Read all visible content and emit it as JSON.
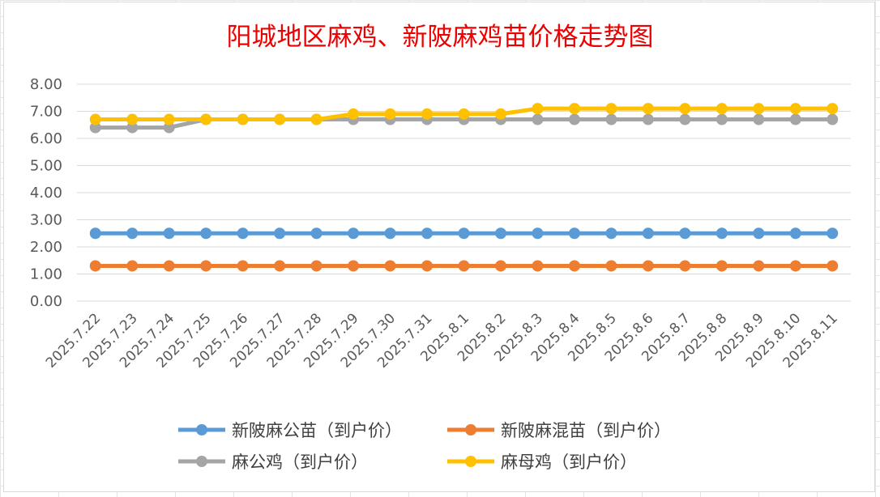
{
  "chart_data": {
    "type": "line",
    "title": "阳城地区麻鸡、新陂麻鸡苗价格走势图",
    "xlabel": "",
    "ylabel": "",
    "ylim": [
      0,
      8
    ],
    "yticks": [
      "0.00",
      "1.00",
      "2.00",
      "3.00",
      "4.00",
      "5.00",
      "6.00",
      "7.00",
      "8.00"
    ],
    "grid": "horizontal",
    "legend_position": "bottom",
    "categories": [
      "2025.7.22",
      "2025.7.23",
      "2025.7.24",
      "2025.7.25",
      "2025.7.26",
      "2025.7.27",
      "2025.7.28",
      "2025.7.29",
      "2025.7.30",
      "2025.7.31",
      "2025.8.1",
      "2025.8.2",
      "2025.8.3",
      "2025.8.4",
      "2025.8.5",
      "2025.8.6",
      "2025.8.7",
      "2025.8.8",
      "2025.8.9",
      "2025.8.10",
      "2025.8.11"
    ],
    "series": [
      {
        "name": "新陂麻公苗（到户价）",
        "color": "#5b9bd5",
        "values": [
          2.5,
          2.5,
          2.5,
          2.5,
          2.5,
          2.5,
          2.5,
          2.5,
          2.5,
          2.5,
          2.5,
          2.5,
          2.5,
          2.5,
          2.5,
          2.5,
          2.5,
          2.5,
          2.5,
          2.5,
          2.5
        ]
      },
      {
        "name": "新陂麻混苗（到户价）",
        "color": "#ed7d31",
        "values": [
          1.3,
          1.3,
          1.3,
          1.3,
          1.3,
          1.3,
          1.3,
          1.3,
          1.3,
          1.3,
          1.3,
          1.3,
          1.3,
          1.3,
          1.3,
          1.3,
          1.3,
          1.3,
          1.3,
          1.3,
          1.3
        ]
      },
      {
        "name": "麻公鸡（到户价）",
        "color": "#a5a5a5",
        "values": [
          6.4,
          6.4,
          6.4,
          6.7,
          6.7,
          6.7,
          6.7,
          6.7,
          6.7,
          6.7,
          6.7,
          6.7,
          6.7,
          6.7,
          6.7,
          6.7,
          6.7,
          6.7,
          6.7,
          6.7,
          6.7
        ]
      },
      {
        "name": "麻母鸡（到户价）",
        "color": "#ffc000",
        "values": [
          6.7,
          6.7,
          6.7,
          6.7,
          6.7,
          6.7,
          6.7,
          6.9,
          6.9,
          6.9,
          6.9,
          6.9,
          7.1,
          7.1,
          7.1,
          7.1,
          7.1,
          7.1,
          7.1,
          7.1,
          7.1
        ]
      }
    ]
  }
}
